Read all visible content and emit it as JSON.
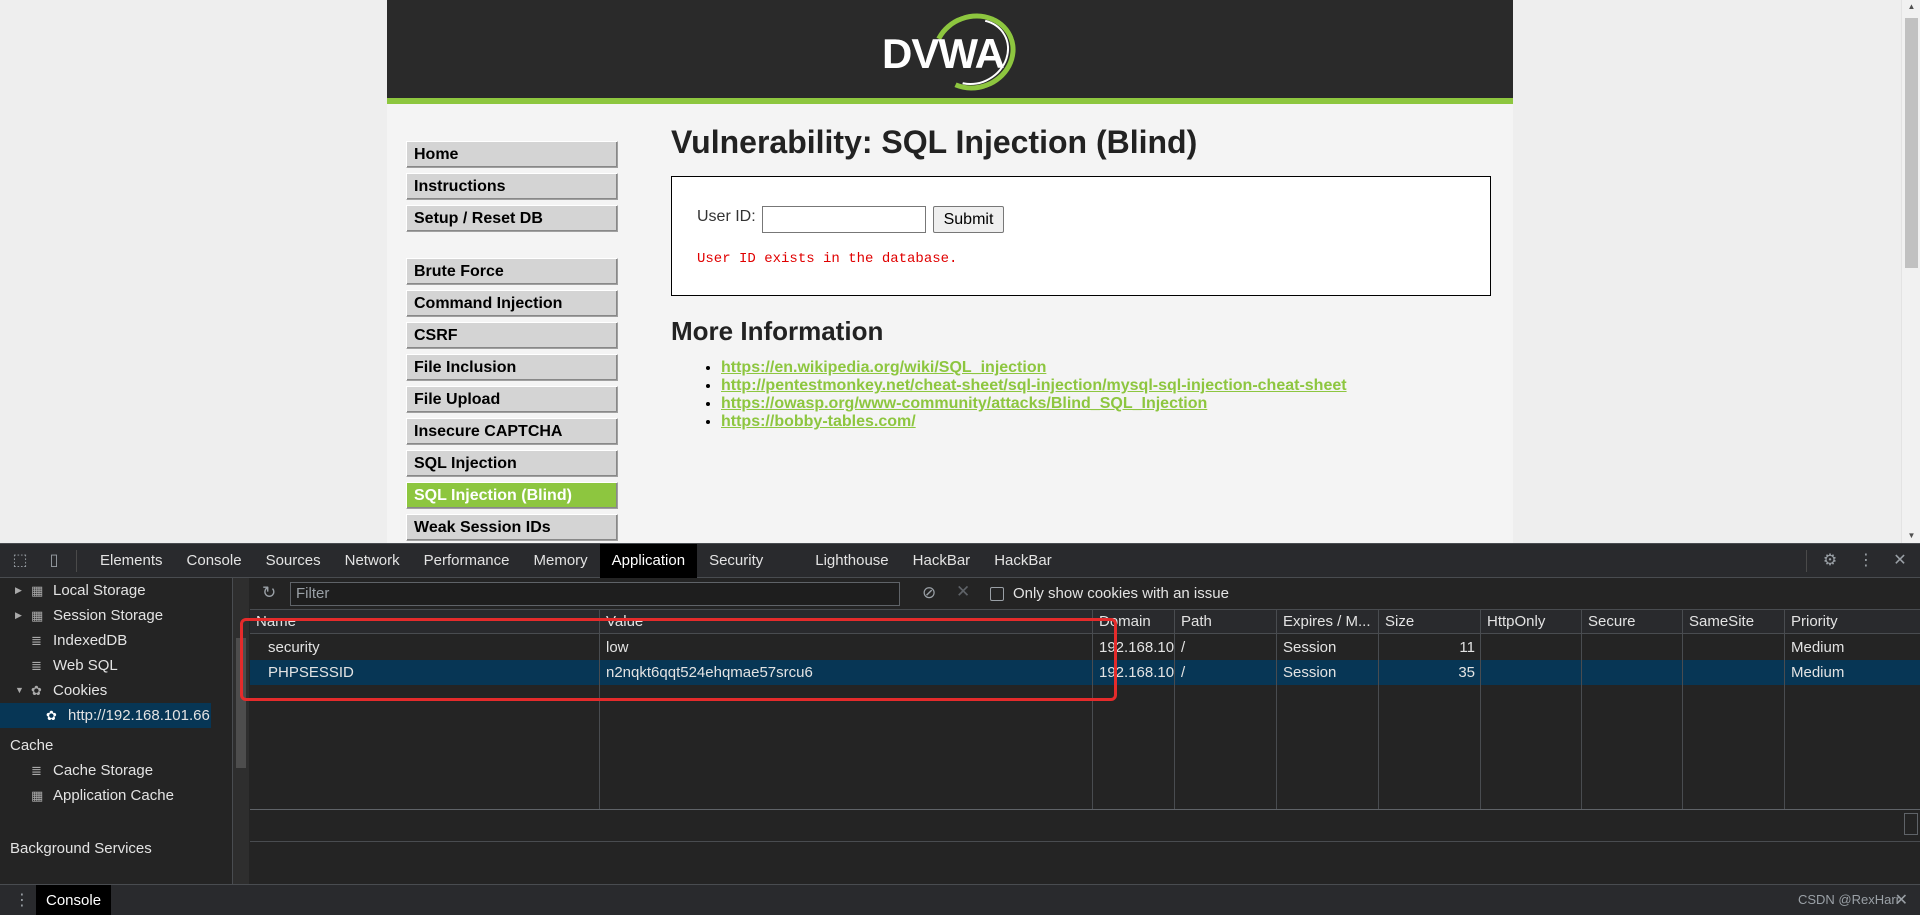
{
  "dvwa": {
    "logo_text": "DVWA",
    "menu_group1": [
      "Home",
      "Instructions",
      "Setup / Reset DB"
    ],
    "menu_group2": [
      "Brute Force",
      "Command Injection",
      "CSRF",
      "File Inclusion",
      "File Upload",
      "Insecure CAPTCHA",
      "SQL Injection",
      "SQL Injection (Blind)",
      "Weak Session IDs"
    ],
    "selected_menu": "SQL Injection (Blind)",
    "title": "Vulnerability: SQL Injection (Blind)",
    "user_id_label": "User ID:",
    "user_id_value": "",
    "submit_label": "Submit",
    "result_message": "User ID exists in the database.",
    "more_info_title": "More Information",
    "links": [
      "https://en.wikipedia.org/wiki/SQL_injection",
      "http://pentestmonkey.net/cheat-sheet/sql-injection/mysql-sql-injection-cheat-sheet",
      "https://owasp.org/www-community/attacks/Blind_SQL_Injection",
      "https://bobby-tables.com/"
    ],
    "accent_color": "#8dc63f"
  },
  "devtools": {
    "tabs": [
      "Elements",
      "Console",
      "Sources",
      "Network",
      "Performance",
      "Memory",
      "Application",
      "Security",
      "Lighthouse",
      "HackBar",
      "HackBar"
    ],
    "active_tab": "Application",
    "sidebar": {
      "storage": [
        "Local Storage",
        "Session Storage",
        "IndexedDB",
        "Web SQL",
        "Cookies"
      ],
      "cookie_origin": "http://192.168.101.66",
      "cache_header": "Cache",
      "cache_items": [
        "Cache Storage",
        "Application Cache"
      ],
      "background_header": "Background Services"
    },
    "filter_placeholder": "Filter",
    "only_issue_label": "Only show cookies with an issue",
    "columns": [
      "Name",
      "Value",
      "Domain",
      "Path",
      "Expires / M...",
      "Size",
      "HttpOnly",
      "Secure",
      "SameSite",
      "Priority"
    ],
    "rows": [
      {
        "name": "security",
        "value": "low",
        "domain": "192.168.10...",
        "path": "/",
        "expires": "Session",
        "size": "11",
        "httponly": "",
        "secure": "",
        "samesite": "",
        "priority": "Medium"
      },
      {
        "name": "PHPSESSID",
        "value": "n2nqkt6qqt524ehqmae57srcu6",
        "domain": "192.168.10...",
        "path": "/",
        "expires": "Session",
        "size": "35",
        "httponly": "",
        "secure": "",
        "samesite": "",
        "priority": "Medium"
      }
    ],
    "drawer_tab": "Console",
    "watermark": "CSDN @RexHarr"
  }
}
